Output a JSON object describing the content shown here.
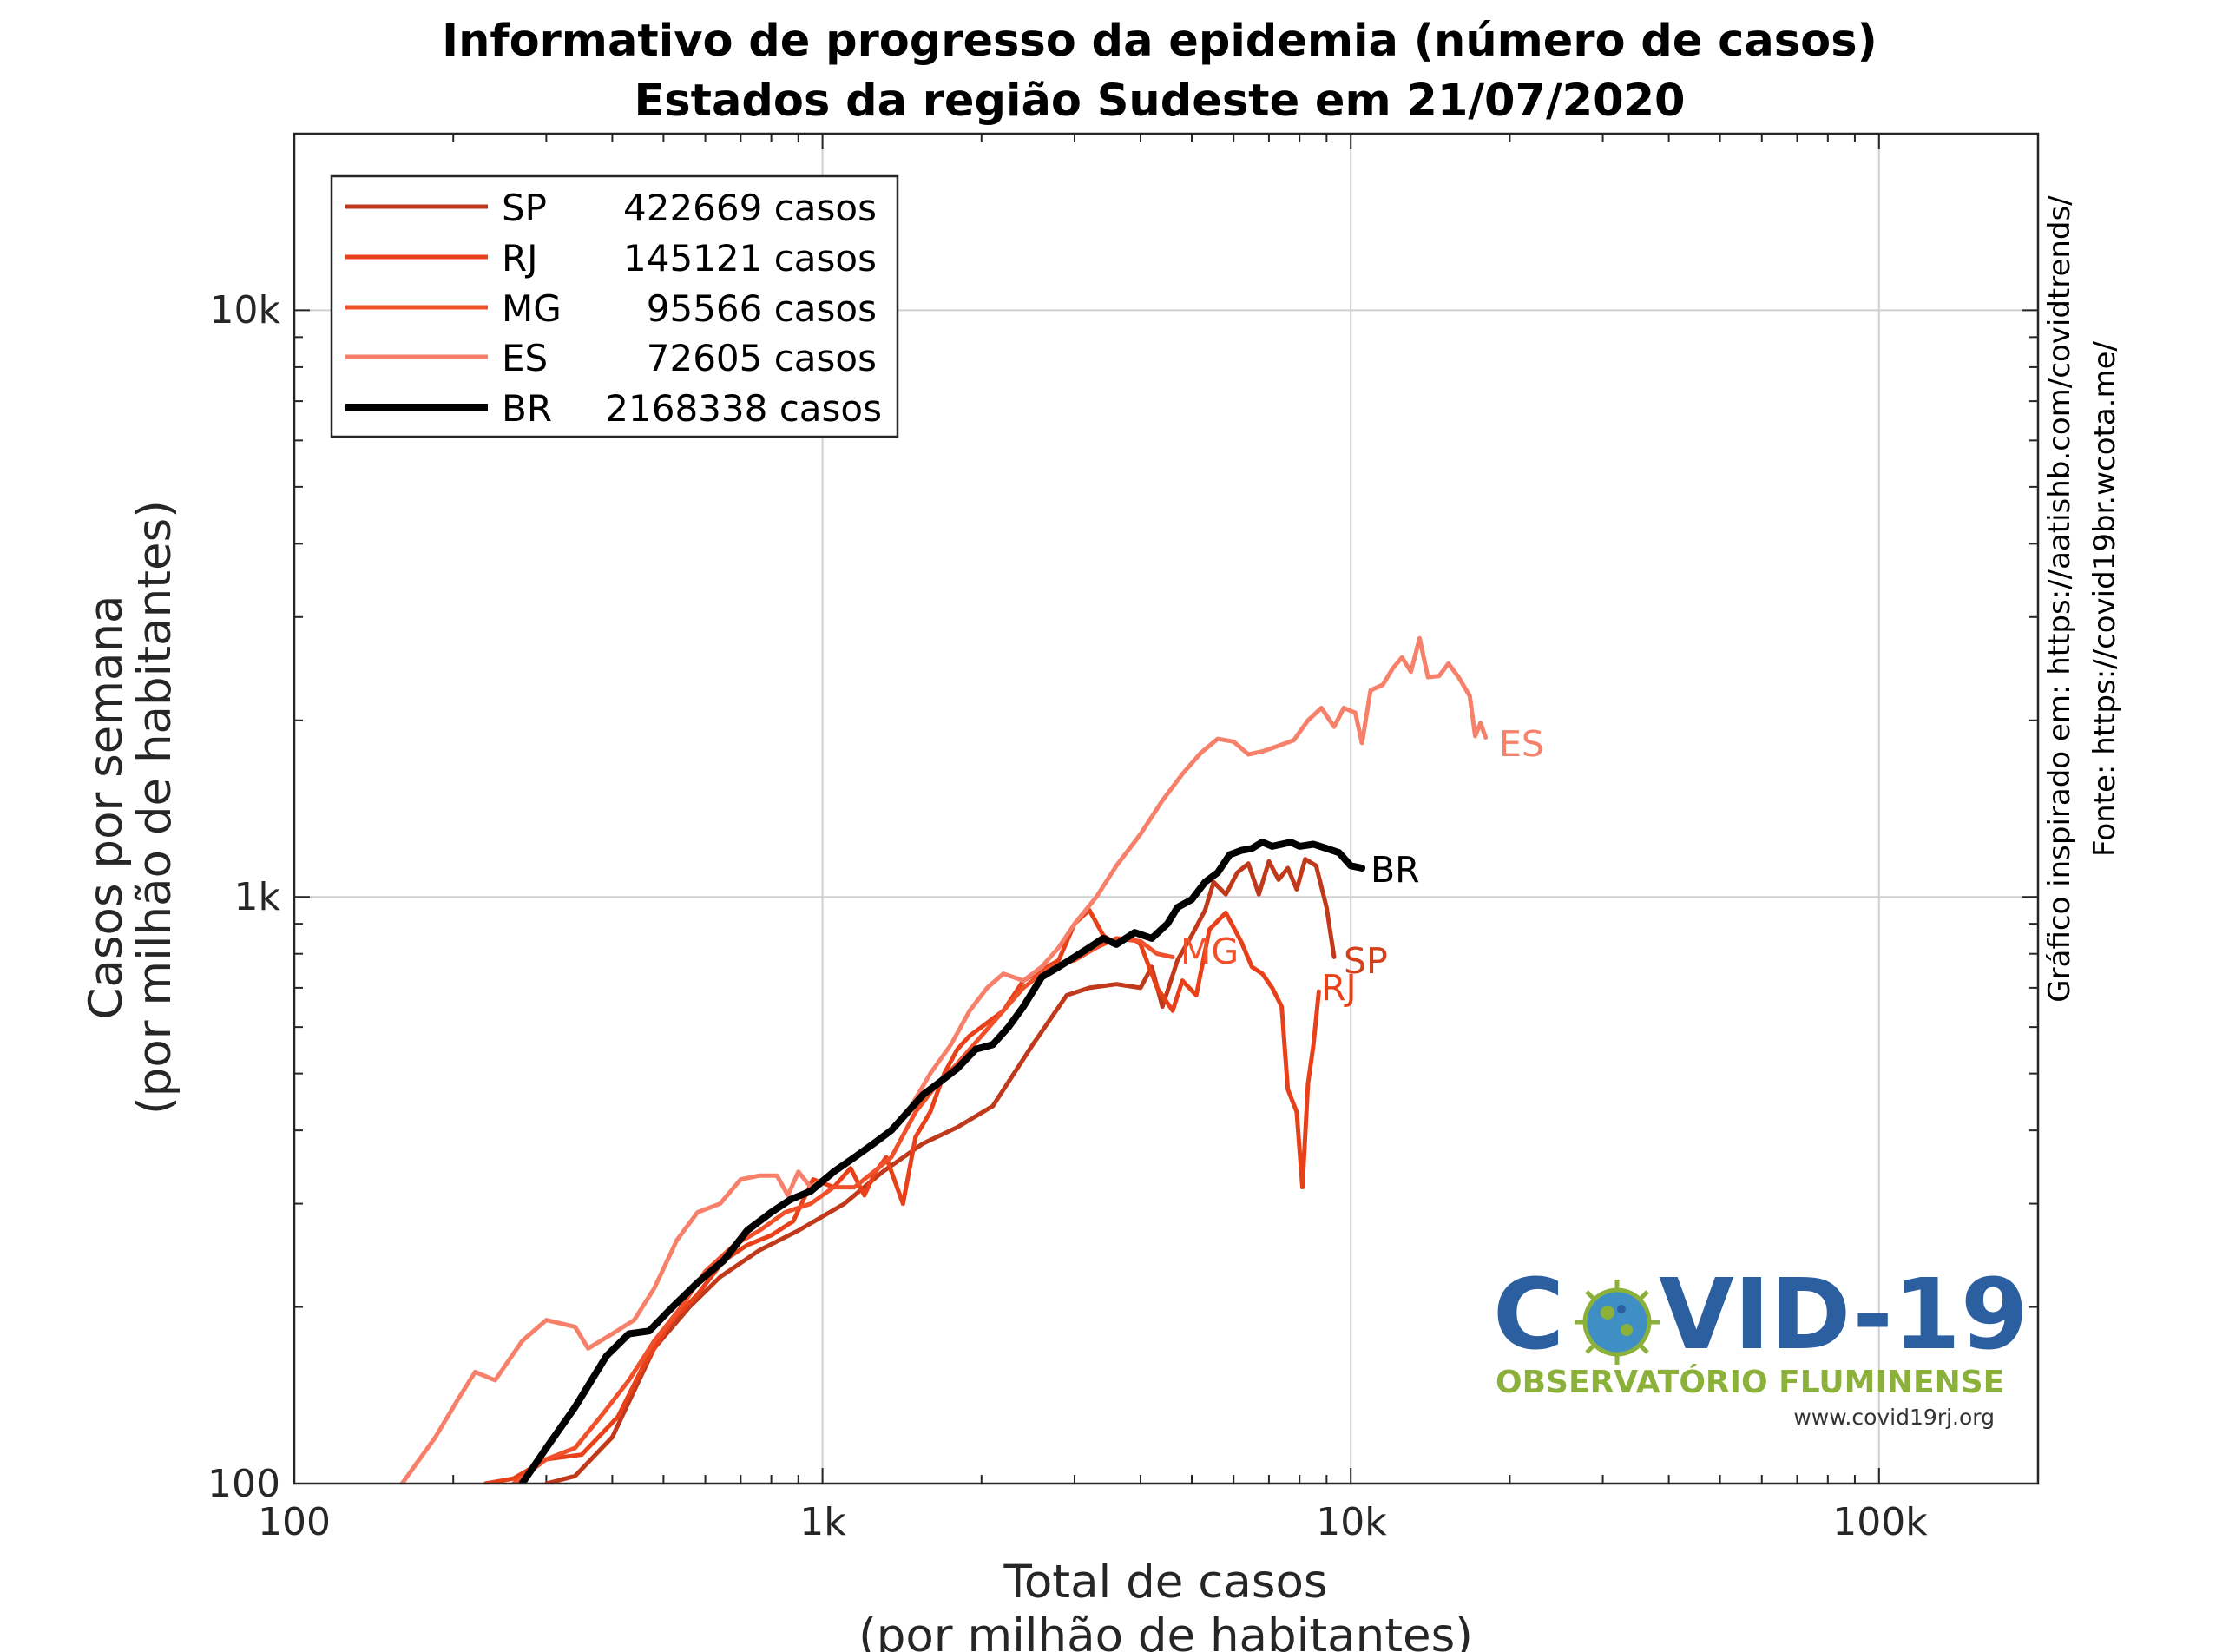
{
  "chart_data": {
    "type": "line",
    "title": "Informativo de progresso da epidemia (número de casos)",
    "subtitle": "Estados da região Sudeste em 21/07/2020",
    "xlabel": "Total de casos",
    "xlabel_sub": "(por milhão de habitantes)",
    "ylabel": "Casos por semana",
    "ylabel_sub": "(por milhão de habitantes)",
    "x_scale": "log",
    "y_scale": "log",
    "xlim": [
      100,
      200000
    ],
    "ylim": [
      100,
      20000
    ],
    "x_ticks": [
      {
        "value": 100,
        "label": "100"
      },
      {
        "value": 1000,
        "label": "1k"
      },
      {
        "value": 10000,
        "label": "10k"
      },
      {
        "value": 100000,
        "label": "100k"
      }
    ],
    "y_ticks": [
      {
        "value": 100,
        "label": "100"
      },
      {
        "value": 1000,
        "label": "1k"
      },
      {
        "value": 10000,
        "label": "10k"
      }
    ],
    "grid": true,
    "legend_position": "top-left",
    "legend": [
      {
        "state": "SP",
        "cases": "422669 casos"
      },
      {
        "state": "RJ",
        "cases": "145121 casos"
      },
      {
        "state": "MG",
        "cases": "95566 casos"
      },
      {
        "state": "ES",
        "cases": "72605 casos"
      },
      {
        "state": "BR",
        "cases": "2168338 casos"
      }
    ],
    "series": [
      {
        "name": "SP",
        "color": "#c0391b",
        "width": 5,
        "points": [
          [
            300,
            100
          ],
          [
            340,
            103
          ],
          [
            400,
            120
          ],
          [
            480,
            170
          ],
          [
            560,
            200
          ],
          [
            640,
            225
          ],
          [
            760,
            250
          ],
          [
            900,
            270
          ],
          [
            1100,
            300
          ],
          [
            1300,
            340
          ],
          [
            1550,
            380
          ],
          [
            1800,
            405
          ],
          [
            2100,
            440
          ],
          [
            2500,
            560
          ],
          [
            2900,
            680
          ],
          [
            3200,
            700
          ],
          [
            3600,
            710
          ],
          [
            4000,
            700
          ],
          [
            4200,
            760
          ],
          [
            4400,
            650
          ],
          [
            4700,
            780
          ],
          [
            5000,
            860
          ],
          [
            5300,
            950
          ],
          [
            5500,
            1060
          ],
          [
            5800,
            1010
          ],
          [
            6100,
            1100
          ],
          [
            6400,
            1140
          ],
          [
            6700,
            1010
          ],
          [
            7000,
            1150
          ],
          [
            7300,
            1070
          ],
          [
            7600,
            1120
          ],
          [
            7900,
            1030
          ],
          [
            8200,
            1160
          ],
          [
            8600,
            1130
          ],
          [
            9000,
            960
          ],
          [
            9300,
            790
          ]
        ]
      },
      {
        "name": "RJ",
        "color": "#e8411a",
        "width": 5,
        "points": [
          [
            230,
            100
          ],
          [
            260,
            102
          ],
          [
            300,
            110
          ],
          [
            350,
            112
          ],
          [
            410,
            130
          ],
          [
            460,
            160
          ],
          [
            520,
            190
          ],
          [
            580,
            210
          ],
          [
            650,
            240
          ],
          [
            720,
            255
          ],
          [
            800,
            265
          ],
          [
            880,
            280
          ],
          [
            960,
            330
          ],
          [
            1050,
            320
          ],
          [
            1130,
            345
          ],
          [
            1200,
            310
          ],
          [
            1260,
            340
          ],
          [
            1320,
            360
          ],
          [
            1420,
            300
          ],
          [
            1500,
            390
          ],
          [
            1600,
            430
          ],
          [
            1700,
            500
          ],
          [
            1800,
            550
          ],
          [
            1900,
            580
          ],
          [
            2000,
            600
          ],
          [
            2200,
            640
          ],
          [
            2400,
            720
          ],
          [
            2600,
            750
          ],
          [
            2800,
            780
          ],
          [
            3000,
            900
          ],
          [
            3200,
            950
          ],
          [
            3400,
            860
          ],
          [
            3600,
            830
          ],
          [
            3800,
            860
          ],
          [
            4000,
            830
          ],
          [
            4300,
            700
          ],
          [
            4600,
            640
          ],
          [
            4800,
            720
          ],
          [
            5100,
            680
          ],
          [
            5400,
            880
          ],
          [
            5800,
            940
          ],
          [
            6200,
            840
          ],
          [
            6500,
            760
          ],
          [
            6800,
            740
          ],
          [
            7100,
            700
          ],
          [
            7400,
            650
          ],
          [
            7600,
            470
          ],
          [
            7900,
            430
          ],
          [
            8100,
            320
          ],
          [
            8300,
            480
          ],
          [
            8500,
            560
          ],
          [
            8700,
            690
          ]
        ]
      },
      {
        "name": "MG",
        "color": "#f0512a",
        "width": 5,
        "points": [
          [
            260,
            100
          ],
          [
            300,
            110
          ],
          [
            340,
            115
          ],
          [
            380,
            130
          ],
          [
            430,
            150
          ],
          [
            480,
            175
          ],
          [
            540,
            200
          ],
          [
            600,
            230
          ],
          [
            680,
            255
          ],
          [
            760,
            270
          ],
          [
            850,
            290
          ],
          [
            950,
            300
          ],
          [
            1050,
            320
          ],
          [
            1150,
            320
          ],
          [
            1250,
            340
          ],
          [
            1350,
            360
          ],
          [
            1500,
            430
          ],
          [
            1650,
            480
          ],
          [
            1800,
            520
          ],
          [
            2000,
            580
          ],
          [
            2200,
            640
          ],
          [
            2400,
            700
          ],
          [
            2700,
            760
          ],
          [
            3000,
            780
          ],
          [
            3300,
            820
          ],
          [
            3600,
            850
          ],
          [
            4000,
            840
          ],
          [
            4300,
            800
          ],
          [
            4600,
            790
          ]
        ]
      },
      {
        "name": "ES",
        "color": "#f68069",
        "width": 5,
        "points": [
          [
            160,
            100
          ],
          [
            185,
            120
          ],
          [
            205,
            140
          ],
          [
            220,
            155
          ],
          [
            240,
            150
          ],
          [
            270,
            175
          ],
          [
            300,
            190
          ],
          [
            340,
            185
          ],
          [
            360,
            170
          ],
          [
            400,
            180
          ],
          [
            440,
            190
          ],
          [
            480,
            215
          ],
          [
            530,
            260
          ],
          [
            580,
            290
          ],
          [
            640,
            300
          ],
          [
            700,
            330
          ],
          [
            760,
            335
          ],
          [
            820,
            335
          ],
          [
            860,
            310
          ],
          [
            900,
            340
          ],
          [
            950,
            320
          ],
          [
            1000,
            330
          ],
          [
            1100,
            350
          ],
          [
            1200,
            370
          ],
          [
            1300,
            390
          ],
          [
            1450,
            430
          ],
          [
            1600,
            500
          ],
          [
            1750,
            560
          ],
          [
            1900,
            640
          ],
          [
            2050,
            700
          ],
          [
            2200,
            740
          ],
          [
            2400,
            720
          ],
          [
            2600,
            760
          ],
          [
            2800,
            820
          ],
          [
            3000,
            900
          ],
          [
            3300,
            1000
          ],
          [
            3600,
            1130
          ],
          [
            4000,
            1280
          ],
          [
            4400,
            1460
          ],
          [
            4800,
            1620
          ],
          [
            5200,
            1760
          ],
          [
            5600,
            1860
          ],
          [
            6000,
            1840
          ],
          [
            6400,
            1750
          ],
          [
            6800,
            1770
          ],
          [
            7300,
            1810
          ],
          [
            7800,
            1850
          ],
          [
            8300,
            2000
          ],
          [
            8800,
            2100
          ],
          [
            9300,
            1950
          ],
          [
            9700,
            2100
          ],
          [
            10200,
            2060
          ],
          [
            10500,
            1830
          ],
          [
            10900,
            2250
          ],
          [
            11500,
            2300
          ],
          [
            12000,
            2450
          ],
          [
            12500,
            2560
          ],
          [
            13000,
            2420
          ],
          [
            13500,
            2760
          ],
          [
            14000,
            2370
          ],
          [
            14700,
            2380
          ],
          [
            15300,
            2500
          ],
          [
            16000,
            2370
          ],
          [
            16800,
            2200
          ],
          [
            17200,
            1880
          ],
          [
            17600,
            1980
          ],
          [
            18000,
            1870
          ]
        ]
      },
      {
        "name": "BR",
        "color": "#000000",
        "width": 8,
        "points": [
          [
            270,
            100
          ],
          [
            300,
            115
          ],
          [
            340,
            135
          ],
          [
            390,
            165
          ],
          [
            430,
            180
          ],
          [
            470,
            182
          ],
          [
            520,
            200
          ],
          [
            580,
            220
          ],
          [
            650,
            240
          ],
          [
            720,
            270
          ],
          [
            800,
            290
          ],
          [
            870,
            305
          ],
          [
            950,
            315
          ],
          [
            1050,
            340
          ],
          [
            1150,
            360
          ],
          [
            1250,
            380
          ],
          [
            1350,
            400
          ],
          [
            1450,
            430
          ],
          [
            1550,
            460
          ],
          [
            1650,
            480
          ],
          [
            1800,
            510
          ],
          [
            1950,
            550
          ],
          [
            2100,
            560
          ],
          [
            2250,
            600
          ],
          [
            2400,
            650
          ],
          [
            2600,
            730
          ],
          [
            2800,
            760
          ],
          [
            3000,
            790
          ],
          [
            3200,
            820
          ],
          [
            3400,
            850
          ],
          [
            3600,
            830
          ],
          [
            3900,
            870
          ],
          [
            4200,
            850
          ],
          [
            4500,
            900
          ],
          [
            4700,
            960
          ],
          [
            5000,
            990
          ],
          [
            5300,
            1060
          ],
          [
            5600,
            1100
          ],
          [
            5900,
            1180
          ],
          [
            6200,
            1200
          ],
          [
            6500,
            1210
          ],
          [
            6800,
            1240
          ],
          [
            7100,
            1220
          ],
          [
            7400,
            1230
          ],
          [
            7700,
            1240
          ],
          [
            8000,
            1220
          ],
          [
            8500,
            1230
          ],
          [
            9000,
            1210
          ],
          [
            9500,
            1190
          ],
          [
            10000,
            1130
          ],
          [
            10500,
            1120
          ]
        ]
      }
    ],
    "end_labels": [
      {
        "text": "SP",
        "color": "#d2401c"
      },
      {
        "text": "RJ",
        "color": "#e8411a"
      },
      {
        "text": "MG",
        "color": "#f0512a"
      },
      {
        "text": "ES",
        "color": "#f68069"
      },
      {
        "text": "BR",
        "color": "#000000"
      }
    ]
  },
  "source": {
    "line1": "Gráfico inspirado em: https://aatishb.com/covidtrends/",
    "line2": "Fonte: https://covid19br.wcota.me/"
  },
  "logo": {
    "title_part1": "C",
    "title_part2": "VID-19",
    "subtitle": "OBSERVATÓRIO FLUMINENSE",
    "url": "www.covid19rj.org",
    "primary_color": "#2b5fa0",
    "accent_color": "#8cb13b"
  }
}
